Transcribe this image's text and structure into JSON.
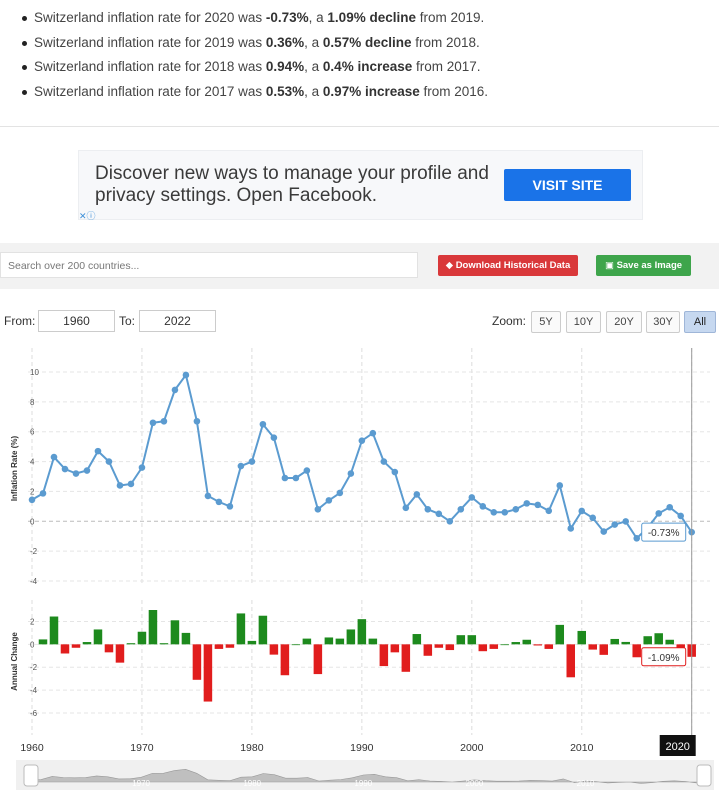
{
  "bullets": [
    {
      "pre": "Switzerland inflation rate for 2020 was ",
      "rate": "-0.73%",
      "mid": ", a ",
      "change": "1.09% decline",
      "post": " from 2019."
    },
    {
      "pre": "Switzerland inflation rate for 2019 was ",
      "rate": "0.36%",
      "mid": ", a ",
      "change": "0.57% decline",
      "post": " from 2018."
    },
    {
      "pre": "Switzerland inflation rate for 2018 was ",
      "rate": "0.94%",
      "mid": ", a ",
      "change": "0.4% increase",
      "post": " from 2017."
    },
    {
      "pre": "Switzerland inflation rate for 2017 was ",
      "rate": "0.53%",
      "mid": ", a ",
      "change": "0.97% increase",
      "post": " from 2016."
    }
  ],
  "ad": {
    "text": "Discover new ways to manage your profile and privacy settings. Open Facebook.",
    "button": "VISIT SITE",
    "adchoices": "✕ⓘ"
  },
  "toolbar": {
    "search_placeholder": "Search over 200 countries...",
    "download_label": "Download Historical Data",
    "save_image_label": "Save as Image"
  },
  "range": {
    "from_label": "From:",
    "from_value": "1960",
    "to_label": "To:",
    "to_value": "2022",
    "zoom_label": "Zoom:",
    "zoom_options": [
      "5Y",
      "10Y",
      "20Y",
      "30Y",
      "All"
    ],
    "zoom_selected": "All"
  },
  "colors": {
    "line": "#5b9bd0",
    "positive": "#1d8a1d",
    "negative": "#e11d1d"
  },
  "chart_data": [
    {
      "type": "line",
      "ylabel": "Inflation Rate (%)",
      "ylim": [
        -4,
        10
      ],
      "yticks": [
        10,
        8,
        6,
        4,
        2,
        0,
        -2,
        -4
      ],
      "x": [
        1960,
        1961,
        1962,
        1963,
        1964,
        1965,
        1966,
        1967,
        1968,
        1969,
        1970,
        1971,
        1972,
        1973,
        1974,
        1975,
        1976,
        1977,
        1978,
        1979,
        1980,
        1981,
        1982,
        1983,
        1984,
        1985,
        1986,
        1987,
        1988,
        1989,
        1990,
        1991,
        1992,
        1993,
        1994,
        1995,
        1996,
        1997,
        1998,
        1999,
        2000,
        2001,
        2002,
        2003,
        2004,
        2005,
        2006,
        2007,
        2008,
        2009,
        2010,
        2011,
        2012,
        2013,
        2014,
        2015,
        2016,
        2017,
        2018,
        2019,
        2020
      ],
      "y": [
        1.44,
        1.87,
        4.3,
        3.5,
        3.2,
        3.4,
        4.7,
        4.0,
        2.4,
        2.5,
        3.6,
        6.6,
        6.7,
        8.8,
        9.8,
        6.7,
        1.7,
        1.3,
        1.0,
        3.7,
        4.0,
        6.5,
        5.6,
        2.9,
        2.9,
        3.4,
        0.8,
        1.4,
        1.9,
        3.2,
        5.4,
        5.9,
        4.0,
        3.3,
        0.9,
        1.8,
        0.8,
        0.5,
        0.0,
        0.8,
        1.6,
        1.0,
        0.6,
        0.6,
        0.8,
        1.2,
        1.1,
        0.7,
        2.4,
        -0.48,
        0.69,
        0.23,
        -0.69,
        -0.22,
        -0.01,
        -1.14,
        -0.43,
        0.53,
        0.94,
        0.36,
        -0.73
      ],
      "tooltip": "-0.73%"
    },
    {
      "type": "bar",
      "ylabel": "Annual Change",
      "ylim": [
        -6,
        3
      ],
      "yticks": [
        2,
        0,
        -2,
        -4,
        -6
      ],
      "x": [
        1961,
        1962,
        1963,
        1964,
        1965,
        1966,
        1967,
        1968,
        1969,
        1970,
        1971,
        1972,
        1973,
        1974,
        1975,
        1976,
        1977,
        1978,
        1979,
        1980,
        1981,
        1982,
        1983,
        1984,
        1985,
        1986,
        1987,
        1988,
        1989,
        1990,
        1991,
        1992,
        1993,
        1994,
        1995,
        1996,
        1997,
        1998,
        1999,
        2000,
        2001,
        2002,
        2003,
        2004,
        2005,
        2006,
        2007,
        2008,
        2009,
        2010,
        2011,
        2012,
        2013,
        2014,
        2015,
        2016,
        2017,
        2018,
        2019,
        2020
      ],
      "values": [
        0.43,
        2.43,
        -0.8,
        -0.3,
        0.2,
        1.3,
        -0.7,
        -1.6,
        0.1,
        1.1,
        3.0,
        0.1,
        2.1,
        1.0,
        -3.1,
        -5.0,
        -0.4,
        -0.3,
        2.7,
        0.3,
        2.5,
        -0.9,
        -2.7,
        0.0,
        0.5,
        -2.6,
        0.6,
        0.5,
        1.3,
        2.2,
        0.5,
        -1.9,
        -0.7,
        -2.4,
        0.9,
        -1.0,
        -0.3,
        -0.5,
        0.8,
        0.8,
        -0.6,
        -0.4,
        0.0,
        0.2,
        0.4,
        -0.1,
        -0.4,
        1.7,
        -2.88,
        1.17,
        -0.46,
        -0.92,
        0.47,
        0.21,
        -1.13,
        0.71,
        0.97,
        0.4,
        -0.57,
        -1.09
      ],
      "tooltip": "-1.09%"
    }
  ],
  "xaxis": {
    "ticks": [
      "1960",
      "1970",
      "1980",
      "1990",
      "2000",
      "2010"
    ],
    "highlight": "2020",
    "navigator_labels": [
      "1970",
      "1980",
      "1990",
      "2000",
      "2010"
    ]
  }
}
